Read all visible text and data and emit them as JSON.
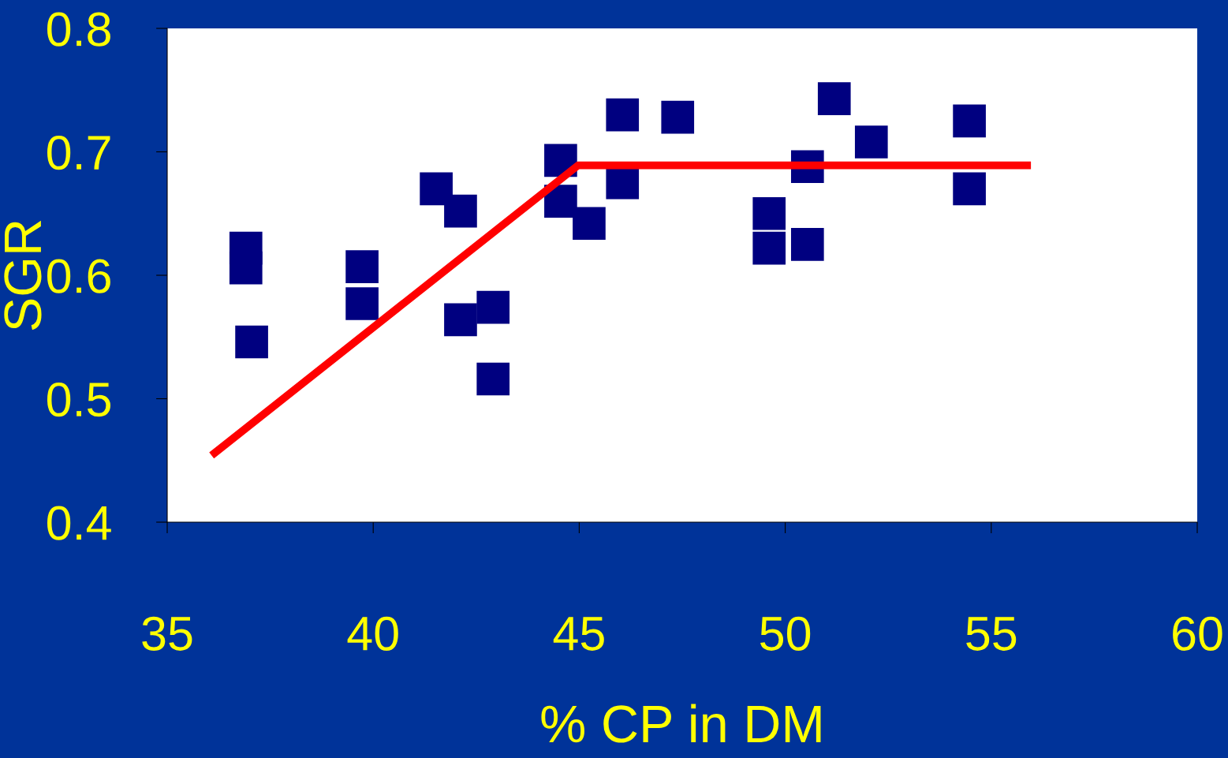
{
  "chart_data": {
    "type": "scatter",
    "xlabel": "% CP in DM",
    "ylabel": "SGR",
    "xlim": [
      35,
      60
    ],
    "ylim": [
      0.4,
      0.8
    ],
    "xticks": [
      35,
      40,
      45,
      50,
      55,
      60
    ],
    "yticks": [
      0.4,
      0.5,
      0.6,
      0.7,
      0.8
    ],
    "grid": false,
    "series": [
      {
        "color": "#000080",
        "marker": "square",
        "x": [
          36.91,
          36.91,
          37.05,
          39.73,
          39.73,
          41.53,
          42.12,
          42.12,
          42.91,
          42.91,
          44.55,
          44.55,
          45.24,
          46.05,
          46.05,
          47.39,
          49.61,
          49.61,
          50.54,
          50.54,
          51.19,
          52.09,
          54.47,
          54.47
        ],
        "values": [
          0.622,
          0.606,
          0.546,
          0.607,
          0.577,
          0.67,
          0.652,
          0.564,
          0.574,
          0.516,
          0.693,
          0.66,
          0.642,
          0.73,
          0.675,
          0.728,
          0.65,
          0.622,
          0.688,
          0.625,
          0.743,
          0.708,
          0.725,
          0.67
        ]
      },
      {
        "type": "line",
        "color": "#ff0000",
        "x": [
          36.15,
          44.97,
          55.87
        ],
        "values": [
          0.456,
          0.689,
          0.689
        ]
      }
    ]
  }
}
